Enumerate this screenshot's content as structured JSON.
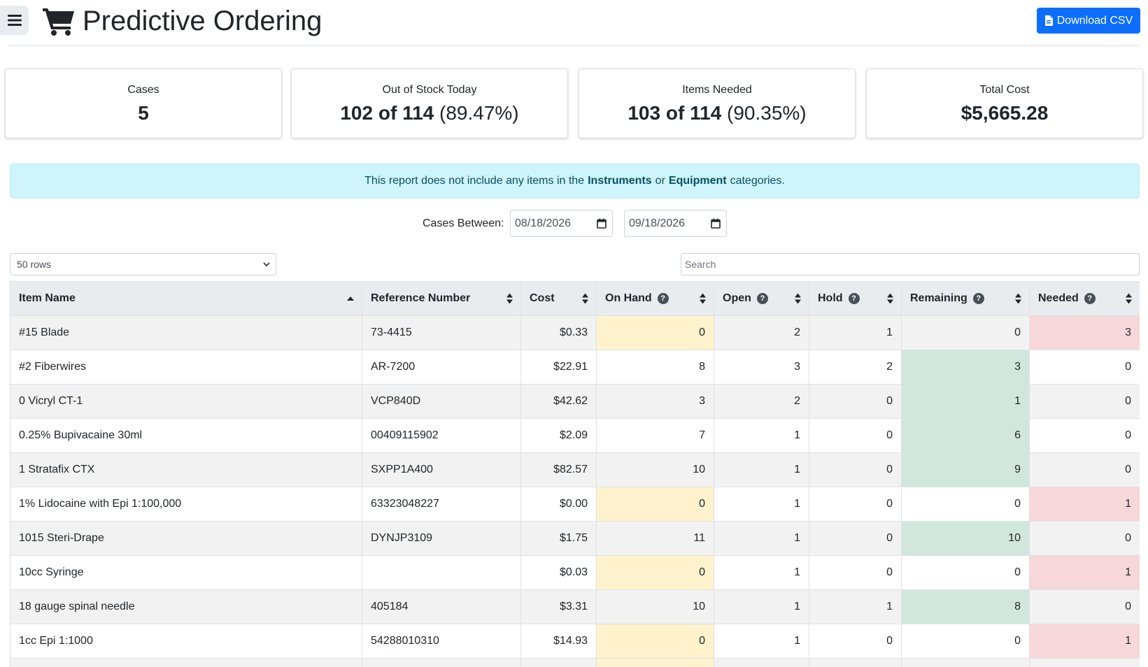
{
  "header": {
    "title": "Predictive Ordering",
    "download_label": "Download CSV"
  },
  "stats": [
    {
      "label": "Cases",
      "value_bold": "5",
      "value_rest": ""
    },
    {
      "label": "Out of Stock Today",
      "value_bold": "102 of 114",
      "value_rest": "(89.47%)"
    },
    {
      "label": "Items Needed",
      "value_bold": "103 of 114",
      "value_rest": "(90.35%)"
    },
    {
      "label": "Total Cost",
      "value_bold": "$5,665.28",
      "value_rest": ""
    }
  ],
  "info": {
    "pre": "This report does not include any items in the",
    "cat1": "Instruments",
    "mid": "or",
    "cat2": "Equipment",
    "post": "categories."
  },
  "filter": {
    "label": "Cases Between:",
    "start": "08/18/2026",
    "end": "09/18/2026"
  },
  "controls": {
    "rows_selected": "50 rows",
    "search_placeholder": "Search"
  },
  "table": {
    "columns": [
      "Item Name",
      "Reference Number",
      "Cost",
      "On Hand",
      "Open",
      "Hold",
      "Remaining",
      "Needed"
    ],
    "rows": [
      {
        "name": "#15 Blade",
        "ref": "73-4415",
        "cost": "$0.33",
        "on_hand": "0",
        "open": "2",
        "hold": "1",
        "remaining": "0",
        "needed": "3"
      },
      {
        "name": "#2 Fiberwires",
        "ref": "AR-7200",
        "cost": "$22.91",
        "on_hand": "8",
        "open": "3",
        "hold": "2",
        "remaining": "3",
        "needed": "0"
      },
      {
        "name": "0 Vicryl CT-1",
        "ref": "VCP840D",
        "cost": "$42.62",
        "on_hand": "3",
        "open": "2",
        "hold": "0",
        "remaining": "1",
        "needed": "0"
      },
      {
        "name": "0.25% Bupivacaine 30ml",
        "ref": "00409115902",
        "cost": "$2.09",
        "on_hand": "7",
        "open": "1",
        "hold": "0",
        "remaining": "6",
        "needed": "0"
      },
      {
        "name": "1 Stratafix CTX",
        "ref": "SXPP1A400",
        "cost": "$82.57",
        "on_hand": "10",
        "open": "1",
        "hold": "0",
        "remaining": "9",
        "needed": "0"
      },
      {
        "name": "1% Lidocaine with Epi 1:100,000",
        "ref": "63323048227",
        "cost": "$0.00",
        "on_hand": "0",
        "open": "1",
        "hold": "0",
        "remaining": "0",
        "needed": "1"
      },
      {
        "name": "1015 Steri-Drape",
        "ref": "DYNJP3109",
        "cost": "$1.75",
        "on_hand": "11",
        "open": "1",
        "hold": "0",
        "remaining": "10",
        "needed": "0"
      },
      {
        "name": "10cc Syringe",
        "ref": "",
        "cost": "$0.03",
        "on_hand": "0",
        "open": "1",
        "hold": "0",
        "remaining": "0",
        "needed": "1"
      },
      {
        "name": "18 gauge spinal needle",
        "ref": "405184",
        "cost": "$3.31",
        "on_hand": "10",
        "open": "1",
        "hold": "1",
        "remaining": "8",
        "needed": "0"
      },
      {
        "name": "1cc Epi 1:1000",
        "ref": "54288010310",
        "cost": "$14.93",
        "on_hand": "0",
        "open": "1",
        "hold": "0",
        "remaining": "0",
        "needed": "1"
      },
      {
        "name": "",
        "ref": "",
        "cost": "",
        "on_hand": "",
        "open": "",
        "hold": "",
        "remaining": "",
        "needed": ""
      }
    ]
  },
  "colors": {
    "primary": "#0d6efd",
    "info_bg": "#cff4fc",
    "info_text": "#055160",
    "warn": "#fff3cd",
    "good": "#d1e7dd",
    "bad": "#f8d7da"
  }
}
